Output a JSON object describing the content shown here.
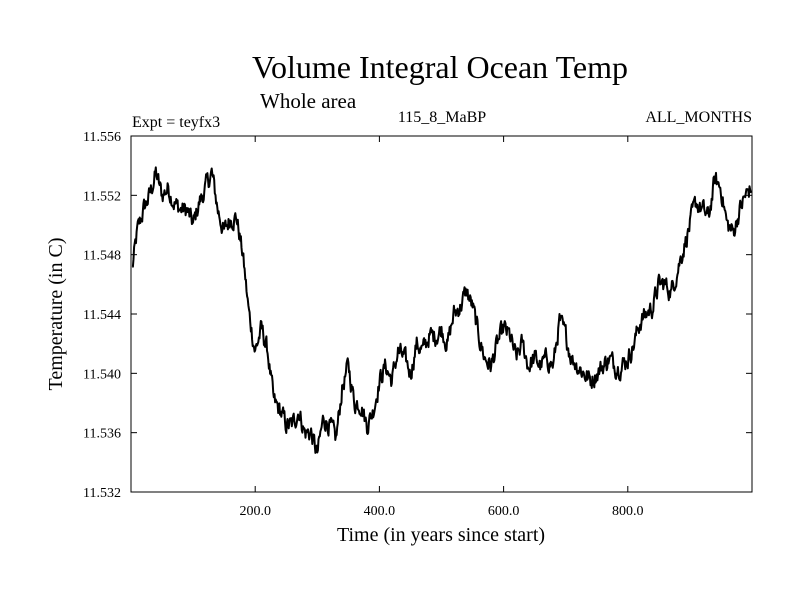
{
  "header": {
    "title": "Volume Integral Ocean Temp",
    "subtitle": "Whole area",
    "expt": "Expt = teyfx3",
    "run": "115_8_MaBP",
    "months": "ALL_MONTHS"
  },
  "chart_data": {
    "type": "line",
    "title": "Volume Integral Ocean Temp",
    "subtitle": "Whole area",
    "xlabel": "Time (in years since start)",
    "ylabel": "Temperature (in C)",
    "xlim": [
      0,
      1000
    ],
    "ylim": [
      11.532,
      11.556
    ],
    "xticks": [
      200,
      400,
      600,
      800
    ],
    "xtick_labels": [
      "200.0",
      "400.0",
      "600.0",
      "800.0"
    ],
    "yticks": [
      11.532,
      11.536,
      11.54,
      11.544,
      11.548,
      11.552,
      11.556
    ],
    "ytick_labels": [
      "11.532",
      "11.536",
      "11.540",
      "11.544",
      "11.548",
      "11.552",
      "11.556"
    ],
    "grid": false,
    "series": [
      {
        "name": "Volume Integral Ocean Temp",
        "x": [
          2,
          10,
          20,
          30,
          40,
          50,
          60,
          70,
          80,
          90,
          100,
          110,
          120,
          130,
          140,
          150,
          160,
          170,
          180,
          190,
          200,
          210,
          220,
          230,
          240,
          250,
          260,
          270,
          280,
          290,
          300,
          310,
          320,
          330,
          340,
          350,
          360,
          370,
          380,
          390,
          400,
          410,
          420,
          430,
          440,
          450,
          460,
          470,
          480,
          490,
          500,
          510,
          520,
          530,
          540,
          550,
          560,
          570,
          580,
          590,
          600,
          610,
          620,
          630,
          640,
          650,
          660,
          670,
          680,
          690,
          700,
          710,
          720,
          730,
          740,
          750,
          760,
          770,
          780,
          790,
          800,
          810,
          820,
          830,
          840,
          850,
          860,
          870,
          880,
          890,
          900,
          910,
          920,
          930,
          940,
          950,
          960,
          970,
          980,
          990,
          998
        ],
        "y": [
          11.547,
          11.5495,
          11.551,
          11.552,
          11.5535,
          11.552,
          11.5525,
          11.5515,
          11.551,
          11.551,
          11.55,
          11.5515,
          11.5525,
          11.5535,
          11.551,
          11.5495,
          11.5505,
          11.5505,
          11.548,
          11.544,
          11.5415,
          11.543,
          11.5415,
          11.538,
          11.5375,
          11.5365,
          11.5365,
          11.5375,
          11.536,
          11.536,
          11.5345,
          11.537,
          11.5365,
          11.5355,
          11.539,
          11.5405,
          11.538,
          11.538,
          11.5365,
          11.5375,
          11.5395,
          11.5405,
          11.5395,
          11.5415,
          11.541,
          11.54,
          11.542,
          11.5415,
          11.5425,
          11.5425,
          11.543,
          11.542,
          11.544,
          11.5445,
          11.5455,
          11.5445,
          11.5425,
          11.541,
          11.5405,
          11.542,
          11.543,
          11.5425,
          11.541,
          11.542,
          11.5405,
          11.541,
          11.5405,
          11.541,
          11.5405,
          11.5435,
          11.5425,
          11.541,
          11.5405,
          11.54,
          11.5395,
          11.54,
          11.5405,
          11.541,
          11.5405,
          11.5405,
          11.541,
          11.542,
          11.5435,
          11.544,
          11.5445,
          11.546,
          11.546,
          11.5455,
          11.547,
          11.5485,
          11.55,
          11.5515,
          11.551,
          11.5505,
          11.553,
          11.5525,
          11.55,
          11.5495,
          11.551,
          11.552,
          11.5525
        ]
      }
    ]
  }
}
